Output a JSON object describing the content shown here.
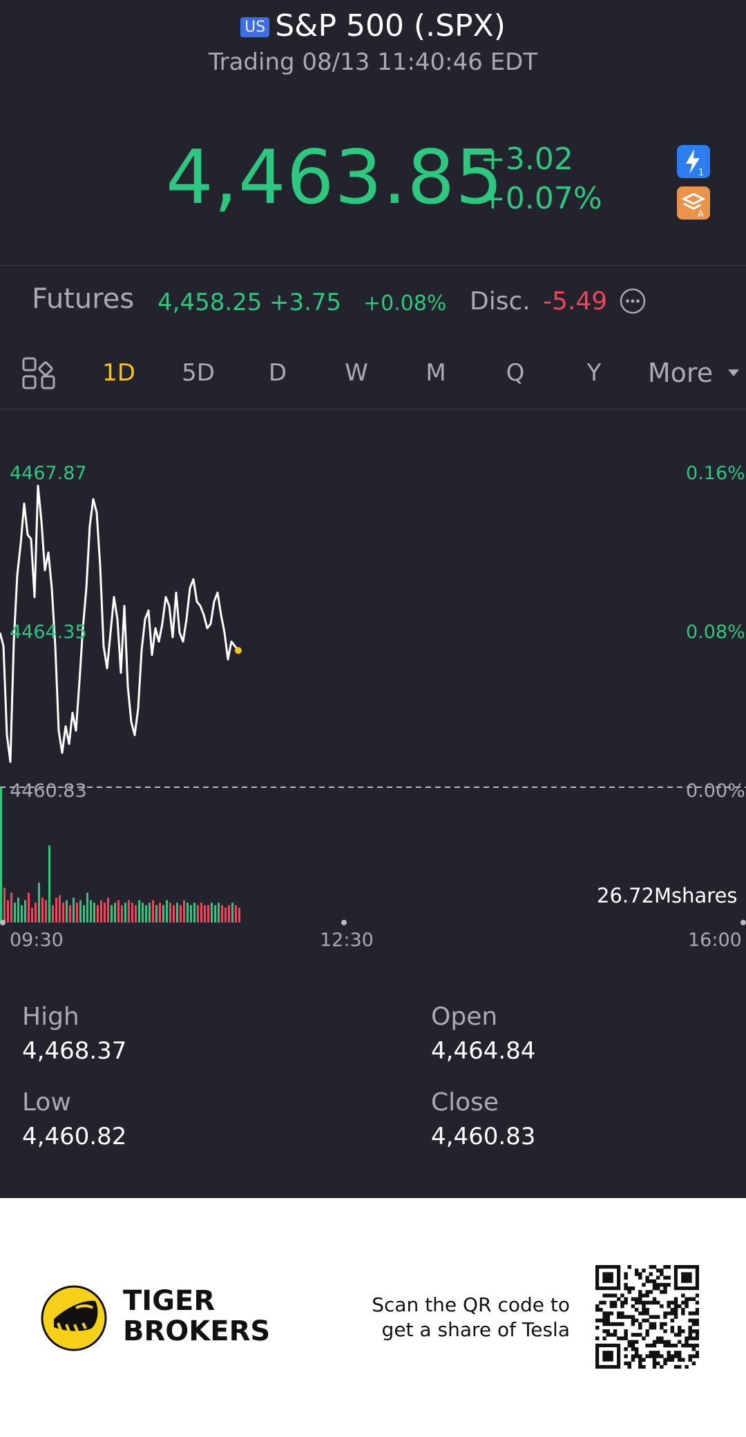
{
  "header": {
    "market_badge": "US",
    "title": "S&P 500 (.SPX)",
    "status": "Trading 08/13 11:40:46 EDT"
  },
  "quote": {
    "price": "4,463.85",
    "change": "+3.02",
    "change_pct": "+0.07%",
    "icon_1": "flash-icon",
    "icon_2": "layers-icon"
  },
  "futures": {
    "label": "Futures",
    "price": "4,458.25",
    "change": "+3.75",
    "change_pct": "+0.08%",
    "disc_label": "Disc.",
    "disc_value": "-5.49"
  },
  "tabs": [
    "1D",
    "5D",
    "D",
    "W",
    "M",
    "Q",
    "Y"
  ],
  "tabs_more": "More",
  "active_tab": "1D",
  "chart": {
    "top_price": "4467.87",
    "mid_price": "4464.35",
    "base_price": "4460.83",
    "top_pct": "0.16%",
    "mid_pct": "0.08%",
    "base_pct": "0.00%",
    "volume": "26.72Mshares",
    "x_start": "09:30",
    "x_mid": "12:30",
    "x_end": "16:00"
  },
  "chart_data": {
    "type": "line",
    "ylim": [
      4460.83,
      4467.87
    ],
    "y_tick_labels": [
      "4467.87",
      "4464.35",
      "4460.83"
    ],
    "y_right_tick_labels": [
      "0.16%",
      "0.08%",
      "0.00%"
    ],
    "x_tick_labels": [
      "09:30",
      "12:30",
      "16:00"
    ],
    "series": [
      {
        "values": [
          4464.3,
          4464.0,
          4462.0,
          4461.4,
          4464.1,
          4465.6,
          4466.3,
          4467.2,
          4466.5,
          4466.4,
          4465.1,
          4467.6,
          4466.8,
          4465.7,
          4466.1,
          4465.3,
          4464.0,
          4462.1,
          4461.6,
          4462.2,
          4461.8,
          4462.5,
          4462.1,
          4463.2,
          4464.4,
          4465.3,
          4466.7,
          4467.3,
          4467.0,
          4465.8,
          4464.0,
          4463.5,
          4464.3,
          4465.1,
          4464.6,
          4463.4,
          4464.9,
          4463.1,
          4462.3,
          4462.0,
          4462.6,
          4463.9,
          4464.6,
          4464.8,
          4463.8,
          4464.4,
          4464.1,
          4464.5,
          4465.1,
          4464.9,
          4464.2,
          4465.2,
          4464.3,
          4464.1,
          4464.6,
          4465.3,
          4465.5,
          4465.0,
          4464.9,
          4464.7,
          4464.4,
          4464.5,
          4465.0,
          4465.2,
          4464.7,
          4464.3,
          4463.7,
          4464.1,
          4464.0,
          4463.9
        ]
      }
    ],
    "volume_bars": [
      11,
      14,
      9,
      12,
      8,
      10,
      7,
      9,
      12,
      6,
      8,
      16,
      10,
      9,
      31,
      7,
      10,
      11,
      8,
      9,
      7,
      10,
      8,
      9,
      7,
      12,
      9,
      8,
      7,
      9,
      8,
      10,
      7,
      8,
      9,
      7,
      8,
      9,
      8,
      7,
      9,
      8,
      7,
      8,
      9,
      7,
      8,
      7,
      9,
      8,
      7,
      8,
      7,
      9,
      8,
      7,
      8,
      7,
      8,
      7,
      7,
      8,
      7,
      8,
      7,
      6,
      7,
      8,
      7,
      6
    ],
    "colors": {
      "line": "#ffffff",
      "up": "#2ec77f",
      "down": "#f2455b",
      "last_dot": "#f5c518"
    }
  },
  "stats": {
    "high_label": "High",
    "high_value": "4,468.37",
    "open_label": "Open",
    "open_value": "4,464.84",
    "low_label": "Low",
    "low_value": "4,460.82",
    "close_label": "Close",
    "close_value": "4,460.83"
  },
  "footer": {
    "brand_line1": "TIGER",
    "brand_line2": "BROKERS",
    "promo_line1": "Scan the QR code to",
    "promo_line2": "get a share of Tesla"
  },
  "theme": {
    "background": "#22232c",
    "up": "#2ec77f",
    "down": "#f2455b",
    "accent": "#f5c518"
  }
}
